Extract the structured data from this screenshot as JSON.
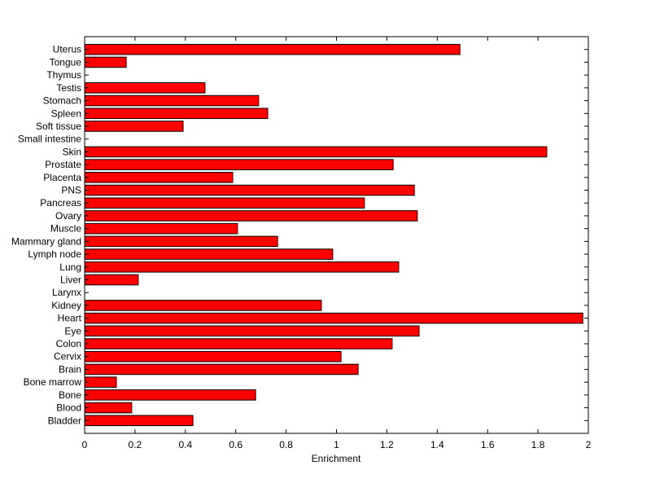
{
  "chart_data": {
    "type": "bar",
    "orientation": "horizontal",
    "title": "",
    "xlabel": "Enrichment",
    "ylabel": "",
    "xlim": [
      0,
      2
    ],
    "xticks": [
      "0",
      "0.2",
      "0.4",
      "0.6",
      "0.8",
      "1",
      "1.2",
      "1.4",
      "1.6",
      "1.8",
      "2"
    ],
    "grid": false,
    "bar_color": "#ff0000",
    "categories": [
      "Uterus",
      "Tongue",
      "Thymus",
      "Testis",
      "Stomach",
      "Spleen",
      "Soft tissue",
      "Small intestine",
      "Skin",
      "Prostate",
      "Placenta",
      "PNS",
      "Pancreas",
      "Ovary",
      "Muscle",
      "Mammary gland",
      "Lymph node",
      "Lung",
      "Liver",
      "Larynx",
      "Kidney",
      "Heart",
      "Eye",
      "Colon",
      "Cervix",
      "Brain",
      "Bone marrow",
      "Bone",
      "Blood",
      "Bladder"
    ],
    "values": [
      1.49,
      0.165,
      0,
      0.478,
      0.691,
      0.727,
      0.391,
      0,
      1.835,
      1.225,
      0.588,
      1.309,
      1.111,
      1.321,
      0.607,
      0.766,
      0.985,
      1.247,
      0.213,
      0,
      0.94,
      1.978,
      1.328,
      1.221,
      1.018,
      1.086,
      0.126,
      0.679,
      0.187,
      0.43
    ]
  }
}
